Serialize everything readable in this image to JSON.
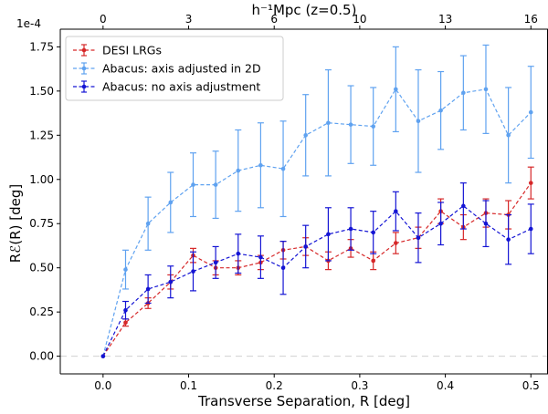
{
  "chart_data": {
    "type": "line",
    "title": "",
    "xlabel": "Transverse Separation, R [deg]",
    "ylabel_main": "Rℰ(R) [deg]",
    "scale_label": "1e-4",
    "top_axis_label": "h⁻¹Mpc (z=0.5)",
    "xlim": [
      -0.05,
      0.52
    ],
    "ylim": [
      -0.1,
      1.85
    ],
    "x_ticks": [
      0.0,
      0.1,
      0.2,
      0.3,
      0.4,
      0.5
    ],
    "x_tick_labels": [
      "0.0",
      "0.1",
      "0.2",
      "0.3",
      "0.4",
      "0.5"
    ],
    "y_ticks": [
      0.0,
      0.25,
      0.5,
      0.75,
      1.0,
      1.25,
      1.5,
      1.75
    ],
    "y_tick_labels": [
      "0.00",
      "0.25",
      "0.50",
      "0.75",
      "1.00",
      "1.25",
      "1.50",
      "1.75"
    ],
    "top_ticks": [
      0,
      3,
      6,
      10,
      13,
      16
    ],
    "top_tick_labels": [
      "0",
      "3",
      "6",
      "10",
      "13",
      "16"
    ],
    "top_ticks_x": [
      0.0,
      0.1,
      0.2,
      0.3,
      0.4,
      0.5
    ],
    "zero_line": true,
    "grid": false,
    "legend_position": "top-left",
    "x": [
      0.0,
      0.0263,
      0.0526,
      0.0789,
      0.1053,
      0.1316,
      0.1579,
      0.1842,
      0.2105,
      0.2368,
      0.2632,
      0.2895,
      0.3158,
      0.3421,
      0.3684,
      0.3947,
      0.4211,
      0.4474,
      0.4737,
      0.5
    ],
    "series": [
      {
        "name": "DESI LRGs",
        "color": "#d62728",
        "marker": "dot",
        "values": [
          0.0,
          0.19,
          0.3,
          0.42,
          0.57,
          0.5,
          0.5,
          0.53,
          0.6,
          0.62,
          0.54,
          0.61,
          0.54,
          0.64,
          0.67,
          0.82,
          0.73,
          0.81,
          0.8,
          0.98
        ],
        "errors": [
          0.0,
          0.02,
          0.03,
          0.04,
          0.04,
          0.04,
          0.04,
          0.04,
          0.05,
          0.05,
          0.05,
          0.05,
          0.05,
          0.06,
          0.06,
          0.07,
          0.07,
          0.08,
          0.08,
          0.09
        ]
      },
      {
        "name": "Abacus: axis adjusted in 2D",
        "color": "#5fa2f0",
        "marker": "dot",
        "values": [
          0.0,
          0.49,
          0.75,
          0.87,
          0.97,
          0.97,
          1.05,
          1.08,
          1.06,
          1.25,
          1.32,
          1.31,
          1.3,
          1.51,
          1.33,
          1.39,
          1.49,
          1.51,
          1.25,
          1.38
        ],
        "errors": [
          0.0,
          0.11,
          0.15,
          0.17,
          0.18,
          0.19,
          0.23,
          0.24,
          0.27,
          0.23,
          0.3,
          0.22,
          0.22,
          0.24,
          0.29,
          0.22,
          0.21,
          0.25,
          0.27,
          0.26
        ]
      },
      {
        "name": "Abacus: no axis adjustment",
        "color": "#1414d4",
        "marker": "dot",
        "values": [
          0.0,
          0.26,
          0.38,
          0.42,
          0.48,
          0.53,
          0.58,
          0.56,
          0.5,
          0.62,
          0.69,
          0.72,
          0.7,
          0.82,
          0.67,
          0.75,
          0.85,
          0.75,
          0.66,
          0.72
        ],
        "errors": [
          0.0,
          0.05,
          0.08,
          0.09,
          0.11,
          0.09,
          0.11,
          0.12,
          0.15,
          0.12,
          0.15,
          0.12,
          0.12,
          0.11,
          0.14,
          0.12,
          0.13,
          0.13,
          0.14,
          0.14
        ]
      }
    ]
  }
}
